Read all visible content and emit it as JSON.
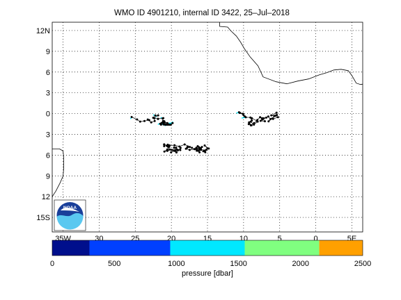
{
  "title": "WMO ID 4901210, internal ID 3422, 25–Jul–2018",
  "map": {
    "lon_range": [
      -36.5,
      6.5
    ],
    "lat_range": [
      -17.1,
      13.2
    ],
    "lat_ticks": [
      {
        "lat": 12,
        "label": "12N"
      },
      {
        "lat": 9,
        "label": "9"
      },
      {
        "lat": 6,
        "label": "6"
      },
      {
        "lat": 3,
        "label": "3"
      },
      {
        "lat": 0,
        "label": "0"
      },
      {
        "lat": -3,
        "label": "3"
      },
      {
        "lat": -6,
        "label": "6"
      },
      {
        "lat": -9,
        "label": "9"
      },
      {
        "lat": -12,
        "label": "12"
      },
      {
        "lat": -15,
        "label": "15S"
      }
    ],
    "lon_ticks": [
      {
        "lon": -35,
        "label": "35W"
      },
      {
        "lon": -30,
        "label": "30"
      },
      {
        "lon": -25,
        "label": "25"
      },
      {
        "lon": -20,
        "label": "20"
      },
      {
        "lon": -15,
        "label": "15"
      },
      {
        "lon": -10,
        "label": "10"
      },
      {
        "lon": -5,
        "label": "5"
      },
      {
        "lon": 0,
        "label": "0"
      },
      {
        "lon": 5,
        "label": "5E"
      }
    ],
    "grid": true,
    "colors": {
      "coast": "#000000",
      "track": "#000000",
      "dot": "#000000"
    }
  },
  "logo": {
    "text": "NOAA"
  },
  "colorbar": {
    "label": "pressure [dbar]",
    "ticks": [
      "0",
      "500",
      "1000",
      "1500",
      "2000",
      "2500"
    ],
    "range": [
      0,
      2500
    ],
    "bins": [
      {
        "from": 0,
        "to": 300,
        "color": "#000f8c"
      },
      {
        "from": 300,
        "to": 950,
        "color": "#0040ff"
      },
      {
        "from": 950,
        "to": 1550,
        "color": "#00e8ff"
      },
      {
        "from": 1550,
        "to": 2150,
        "color": "#80ff80"
      },
      {
        "from": 2150,
        "to": 2500,
        "color": "#ffa000"
      }
    ]
  }
}
